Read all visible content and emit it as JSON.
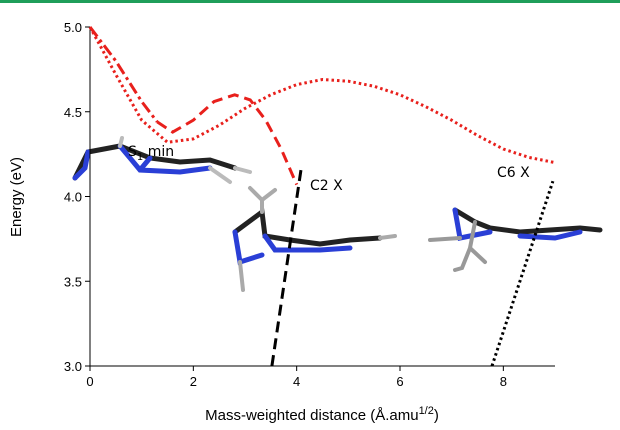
{
  "chart_data": {
    "type": "line",
    "xlabel": {
      "text": "Mass-weighted distance (Å.amu",
      "sup": "1/2",
      "end": ")"
    },
    "ylabel": "Energy (eV)",
    "xlim": [
      0,
      9
    ],
    "xticks": [
      0,
      2,
      4,
      6,
      8
    ],
    "ylim": [
      3.0,
      5.0
    ],
    "yticks": [
      {
        "value": 3.0,
        "label": "3.0"
      },
      3.5,
      {
        "value": 4.0,
        "label": "4.0"
      },
      4.5,
      {
        "value": 5.0,
        "label": "5.0"
      }
    ],
    "series": [
      {
        "color": "#e8201c",
        "style": "dash-dot",
        "x": [
          0,
          0.5,
          1,
          1.3
        ],
        "values": [
          5.0,
          4.8,
          4.56,
          4.44
        ]
      },
      {
        "color": "#e8201c",
        "style": "dash",
        "x": [
          1.3,
          1.6,
          2,
          2.4,
          2.8,
          3.1,
          3.4,
          3.7,
          4.0
        ],
        "values": [
          4.44,
          4.38,
          4.45,
          4.56,
          4.6,
          4.57,
          4.45,
          4.28,
          4.07
        ]
      },
      {
        "color": "#e8201c",
        "style": "dot",
        "x": [
          0,
          0.5,
          1,
          1.5,
          2,
          2.5,
          3,
          3.5,
          4,
          4.5,
          5,
          5.5,
          6,
          6.5,
          7,
          7.5,
          8,
          8.5,
          9
        ],
        "values": [
          5.0,
          4.72,
          4.45,
          4.32,
          4.34,
          4.42,
          4.52,
          4.6,
          4.66,
          4.69,
          4.68,
          4.65,
          4.6,
          4.53,
          4.45,
          4.36,
          4.28,
          4.23,
          4.2
        ]
      },
      {
        "color": "#000000",
        "style": "dash",
        "x": [
          3.52,
          4.1
        ],
        "values": [
          3.0,
          4.19
        ]
      },
      {
        "color": "#000000",
        "style": "dot",
        "x": [
          7.78,
          8.96
        ],
        "values": [
          3.0,
          4.09
        ]
      }
    ],
    "annotations": [
      {
        "text": "S",
        "sub": "1",
        "end": " min"
      },
      {
        "text": "C2 X"
      },
      {
        "text": "C6 X"
      }
    ]
  }
}
